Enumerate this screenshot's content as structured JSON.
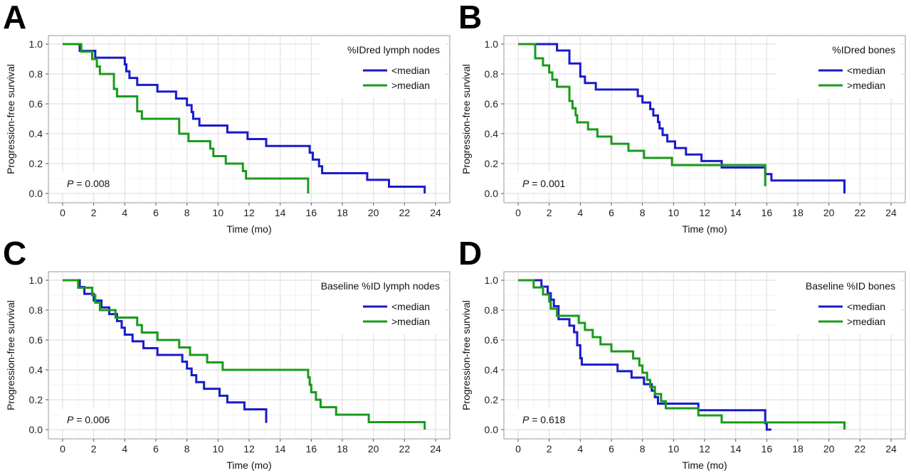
{
  "chart_data": [
    {
      "type": "line",
      "panel_label": "A",
      "xlabel": "Time (mo)",
      "ylabel": "Progression-free survival",
      "xlim": [
        0,
        24
      ],
      "ylim": [
        0,
        1
      ],
      "x_ticks": [
        "0",
        "2",
        "4",
        "6",
        "8",
        "10",
        "12",
        "14",
        "16",
        "18",
        "20",
        "22",
        "24"
      ],
      "y_ticks": [
        "0.0",
        "0.2",
        "0.4",
        "0.6",
        "0.8",
        "1.0"
      ],
      "grid": true,
      "legend_title": "%IDred lymph nodes",
      "legend_position": "top-right",
      "p_label": "P",
      "p_value": " = 0.008",
      "series": [
        {
          "name": "<median",
          "color": "#1a1acc",
          "x": [
            0,
            1.0,
            1.1,
            2.1,
            4.0,
            4.1,
            4.3,
            4.8,
            6.1,
            7.3,
            8.0,
            8.3,
            8.4,
            8.5,
            8.8,
            9.0,
            9.2,
            10.6,
            11.9,
            13.1,
            15.9,
            16.1,
            16.5,
            16.7,
            18.5,
            19.6,
            21.0,
            23.3
          ],
          "y": [
            1,
            1,
            0.955,
            0.909,
            0.864,
            0.818,
            0.773,
            0.727,
            0.682,
            0.636,
            0.591,
            0.545,
            0.5,
            0.5,
            0.455,
            0.455,
            0.455,
            0.409,
            0.364,
            0.318,
            0.273,
            0.227,
            0.182,
            0.136,
            0.136,
            0.091,
            0.045,
            0.045
          ],
          "end_x": 23.3,
          "end_y": 0.0
        },
        {
          "name": ">median",
          "color": "#1a9a1a",
          "x": [
            0,
            1.2,
            1.9,
            2.2,
            2.4,
            3.3,
            3.5,
            4.8,
            5.1,
            7.5,
            8.1,
            9.5,
            9.7,
            10.5,
            11.6,
            11.8,
            15.8
          ],
          "y": [
            1,
            0.95,
            0.9,
            0.85,
            0.8,
            0.7,
            0.65,
            0.55,
            0.5,
            0.4,
            0.35,
            0.3,
            0.25,
            0.2,
            0.15,
            0.1,
            0.05
          ],
          "end_x": 15.8,
          "end_y": 0.0
        }
      ]
    },
    {
      "type": "line",
      "panel_label": "B",
      "xlabel": "Time (mo)",
      "ylabel": "Progression-free survival",
      "xlim": [
        0,
        24
      ],
      "ylim": [
        0,
        1
      ],
      "x_ticks": [
        "0",
        "2",
        "4",
        "6",
        "8",
        "10",
        "12",
        "14",
        "16",
        "18",
        "20",
        "22",
        "24"
      ],
      "y_ticks": [
        "0.0",
        "0.2",
        "0.4",
        "0.6",
        "0.8",
        "1.0"
      ],
      "grid": true,
      "legend_title": "%IDred bones",
      "legend_position": "top-right",
      "p_label": "P",
      "p_value": " = 0.001",
      "series": [
        {
          "name": "<median",
          "color": "#1a1acc",
          "x": [
            0,
            2.2,
            2.5,
            3.3,
            4.0,
            4.3,
            5.0,
            7.7,
            8.0,
            8.5,
            8.7,
            9.0,
            9.1,
            9.3,
            9.6,
            10.1,
            10.8,
            11.8,
            13.1,
            15.9,
            16.3,
            21.0
          ],
          "y": [
            1,
            1,
            0.957,
            0.87,
            0.783,
            0.739,
            0.696,
            0.652,
            0.609,
            0.565,
            0.522,
            0.478,
            0.435,
            0.391,
            0.348,
            0.304,
            0.261,
            0.217,
            0.174,
            0.13,
            0.087,
            0.043
          ],
          "end_x": 21.0,
          "end_y": 0.0
        },
        {
          "name": ">median",
          "color": "#1a9a1a",
          "x": [
            0,
            1.1,
            1.6,
            2.0,
            2.2,
            2.5,
            3.3,
            3.5,
            3.7,
            3.8,
            4.5,
            5.1,
            6.0,
            7.1,
            8.1,
            9.9,
            15.9
          ],
          "y": [
            1,
            0.905,
            0.857,
            0.81,
            0.762,
            0.714,
            0.619,
            0.571,
            0.524,
            0.476,
            0.429,
            0.381,
            0.333,
            0.286,
            0.238,
            0.19,
            0.143
          ],
          "end_x": 15.9,
          "end_y": 0.048
        }
      ]
    },
    {
      "type": "line",
      "panel_label": "C",
      "xlabel": "Time (mo)",
      "ylabel": "Progression-free survival",
      "xlim": [
        0,
        24
      ],
      "ylim": [
        0,
        1
      ],
      "x_ticks": [
        "0",
        "2",
        "4",
        "6",
        "8",
        "10",
        "12",
        "14",
        "16",
        "18",
        "20",
        "22",
        "24"
      ],
      "y_ticks": [
        "0.0",
        "0.2",
        "0.4",
        "0.6",
        "0.8",
        "1.0"
      ],
      "grid": true,
      "legend_title": "Baseline %ID lymph nodes",
      "legend_position": "top-right",
      "p_label": "P",
      "p_value": " = 0.006",
      "series": [
        {
          "name": "<median",
          "color": "#1a1acc",
          "x": [
            0,
            1.1,
            1.4,
            2.0,
            2.5,
            3.0,
            3.5,
            3.8,
            4.0,
            4.5,
            5.2,
            6.1,
            7.7,
            8.0,
            8.3,
            8.6,
            9.1,
            10.1,
            10.6,
            11.7
          ],
          "y": [
            1,
            0.955,
            0.909,
            0.864,
            0.818,
            0.773,
            0.727,
            0.682,
            0.636,
            0.591,
            0.545,
            0.5,
            0.455,
            0.409,
            0.364,
            0.318,
            0.273,
            0.227,
            0.182,
            0.136
          ],
          "end_x": 13.1,
          "end_y": 0.045
        },
        {
          "name": ">median",
          "color": "#1a9a1a",
          "x": [
            0,
            1.0,
            1.9,
            2.1,
            2.4,
            3.4,
            4.8,
            5.1,
            6.1,
            7.5,
            8.2,
            9.3,
            10.3,
            11.6,
            15.8,
            15.9,
            16.0,
            16.3,
            16.6,
            17.6,
            19.7,
            21.0
          ],
          "y": [
            1,
            0.95,
            0.9,
            0.85,
            0.8,
            0.75,
            0.7,
            0.65,
            0.6,
            0.55,
            0.5,
            0.45,
            0.4,
            0.4,
            0.35,
            0.3,
            0.25,
            0.2,
            0.15,
            0.1,
            0.05,
            0.05
          ],
          "end_x": 23.3,
          "end_y": 0.0
        }
      ]
    },
    {
      "type": "line",
      "panel_label": "D",
      "xlabel": "Time (mo)",
      "ylabel": "Progression-free survival",
      "xlim": [
        0,
        24
      ],
      "ylim": [
        0,
        1
      ],
      "x_ticks": [
        "0",
        "2",
        "4",
        "6",
        "8",
        "10",
        "12",
        "14",
        "16",
        "18",
        "20",
        "22",
        "24"
      ],
      "y_ticks": [
        "0.0",
        "0.2",
        "0.4",
        "0.6",
        "0.8",
        "1.0"
      ],
      "grid": true,
      "legend_title": "Baseline %ID bones",
      "legend_position": "top-right",
      "p_label": "P",
      "p_value": " = 0.618",
      "series": [
        {
          "name": "<median",
          "color": "#1a1acc",
          "x": [
            0,
            1.1,
            1.5,
            1.9,
            2.1,
            2.3,
            2.6,
            3.3,
            3.6,
            3.8,
            4.0,
            4.1,
            6.4,
            7.3,
            8.1,
            8.6,
            8.8,
            9.0,
            9.2,
            11.6,
            15.9,
            16.0
          ],
          "y": [
            1,
            1,
            0.957,
            0.913,
            0.87,
            0.826,
            0.739,
            0.696,
            0.652,
            0.565,
            0.478,
            0.435,
            0.391,
            0.348,
            0.304,
            0.261,
            0.217,
            0.174,
            0.174,
            0.13,
            0.043,
            0.0
          ],
          "end_x": 16.3,
          "end_y": 0.0
        },
        {
          "name": ">median",
          "color": "#1a9a1a",
          "x": [
            0,
            1.0,
            1.6,
            2.0,
            2.1,
            2.5,
            3.9,
            4.3,
            4.8,
            5.3,
            6.0,
            7.4,
            7.8,
            8.0,
            8.3,
            8.5,
            8.8,
            9.2,
            9.5,
            10.0,
            11.6,
            13.1
          ],
          "y": [
            1,
            0.952,
            0.905,
            0.857,
            0.81,
            0.762,
            0.714,
            0.667,
            0.619,
            0.571,
            0.524,
            0.476,
            0.429,
            0.381,
            0.333,
            0.286,
            0.238,
            0.19,
            0.143,
            0.143,
            0.095,
            0.048
          ],
          "end_x": 21.0,
          "end_y": 0.0
        }
      ]
    }
  ]
}
